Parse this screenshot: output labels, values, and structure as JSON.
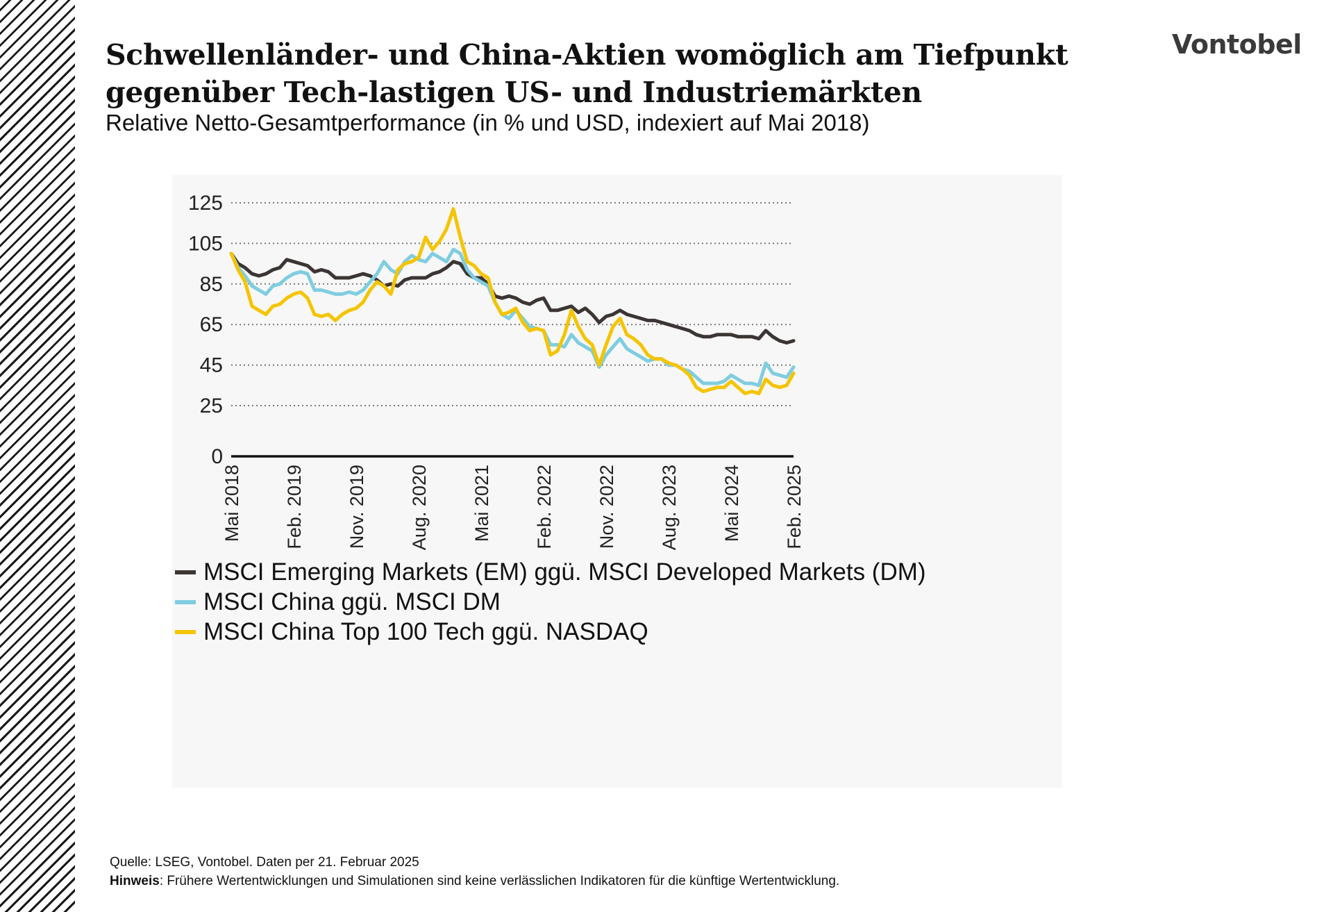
{
  "header": {
    "title_line1": "Schwellenländer- und China-Aktien womöglich am Tiefpunkt",
    "title_line2": "gegenüber Tech-lastigen US- und Industriemärkten",
    "subtitle": "Relative Netto-Gesamtperformance (in % und USD, indexiert auf Mai 2018)",
    "logo": "Vontobel"
  },
  "footer": {
    "source": "Quelle: LSEG, Vontobel. Daten per 21. Februar 2025",
    "note_label": "Hinweis",
    "note_text": ": Frühere Wertentwicklungen und Simulationen sind keine verlässlichen Indikatoren für die künftige Wertentwicklung."
  },
  "chart_data": {
    "type": "line",
    "x_tick_labels": [
      "Mai 2018",
      "Feb. 2019",
      "Nov. 2019",
      "Aug. 2020",
      "Mai 2021",
      "Feb. 2022",
      "Nov. 2022",
      "Aug. 2023",
      "Mai 2024",
      "Feb. 2025"
    ],
    "y_ticks": [
      0,
      25,
      45,
      65,
      85,
      105,
      125
    ],
    "ylim": [
      0,
      125
    ],
    "xlim": [
      "2018-05",
      "2025-02"
    ],
    "grid": "horizontal dotted",
    "legend_position": "bottom-left",
    "series": [
      {
        "name": "MSCI Emerging Markets (EM) ggü. MSCI Developed Markets (DM)",
        "color": "#3b3534",
        "points": [
          [
            "2018-05",
            100
          ],
          [
            "2018-06",
            95
          ],
          [
            "2018-07",
            93
          ],
          [
            "2018-08",
            90
          ],
          [
            "2018-09",
            89
          ],
          [
            "2018-10",
            90
          ],
          [
            "2018-11",
            92
          ],
          [
            "2018-12",
            93
          ],
          [
            "2019-01",
            97
          ],
          [
            "2019-02",
            96
          ],
          [
            "2019-03",
            95
          ],
          [
            "2019-04",
            94
          ],
          [
            "2019-05",
            91
          ],
          [
            "2019-06",
            92
          ],
          [
            "2019-07",
            91
          ],
          [
            "2019-08",
            88
          ],
          [
            "2019-09",
            88
          ],
          [
            "2019-10",
            88
          ],
          [
            "2019-11",
            89
          ],
          [
            "2019-12",
            90
          ],
          [
            "2020-01",
            89
          ],
          [
            "2020-02",
            87
          ],
          [
            "2020-03",
            84
          ],
          [
            "2020-04",
            85
          ],
          [
            "2020-05",
            84
          ],
          [
            "2020-06",
            87
          ],
          [
            "2020-07",
            88
          ],
          [
            "2020-08",
            88
          ],
          [
            "2020-09",
            88
          ],
          [
            "2020-10",
            90
          ],
          [
            "2020-11",
            91
          ],
          [
            "2020-12",
            93
          ],
          [
            "2021-01",
            96
          ],
          [
            "2021-02",
            95
          ],
          [
            "2021-03",
            90
          ],
          [
            "2021-04",
            88
          ],
          [
            "2021-05",
            88
          ],
          [
            "2021-06",
            85
          ],
          [
            "2021-07",
            79
          ],
          [
            "2021-08",
            78
          ],
          [
            "2021-09",
            79
          ],
          [
            "2021-10",
            78
          ],
          [
            "2021-11",
            76
          ],
          [
            "2021-12",
            75
          ],
          [
            "2022-01",
            77
          ],
          [
            "2022-02",
            78
          ],
          [
            "2022-03",
            72
          ],
          [
            "2022-04",
            72
          ],
          [
            "2022-05",
            73
          ],
          [
            "2022-06",
            74
          ],
          [
            "2022-07",
            71
          ],
          [
            "2022-08",
            73
          ],
          [
            "2022-09",
            70
          ],
          [
            "2022-10",
            66
          ],
          [
            "2022-11",
            69
          ],
          [
            "2022-12",
            70
          ],
          [
            "2023-01",
            72
          ],
          [
            "2023-02",
            70
          ],
          [
            "2023-03",
            69
          ],
          [
            "2023-04",
            68
          ],
          [
            "2023-05",
            67
          ],
          [
            "2023-06",
            67
          ],
          [
            "2023-07",
            66
          ],
          [
            "2023-08",
            65
          ],
          [
            "2023-09",
            64
          ],
          [
            "2023-10",
            63
          ],
          [
            "2023-11",
            62
          ],
          [
            "2023-12",
            60
          ],
          [
            "2024-01",
            59
          ],
          [
            "2024-02",
            59
          ],
          [
            "2024-03",
            60
          ],
          [
            "2024-04",
            60
          ],
          [
            "2024-05",
            60
          ],
          [
            "2024-06",
            59
          ],
          [
            "2024-07",
            59
          ],
          [
            "2024-08",
            59
          ],
          [
            "2024-09",
            58
          ],
          [
            "2024-10",
            62
          ],
          [
            "2024-11",
            59
          ],
          [
            "2024-12",
            57
          ],
          [
            "2025-01",
            56
          ],
          [
            "2025-02",
            57
          ]
        ]
      },
      {
        "name": "MSCI China ggü. MSCI DM",
        "color": "#7fcde0",
        "points": [
          [
            "2018-05",
            100
          ],
          [
            "2018-06",
            93
          ],
          [
            "2018-07",
            89
          ],
          [
            "2018-08",
            84
          ],
          [
            "2018-09",
            82
          ],
          [
            "2018-10",
            80
          ],
          [
            "2018-11",
            84
          ],
          [
            "2018-12",
            85
          ],
          [
            "2019-01",
            88
          ],
          [
            "2019-02",
            90
          ],
          [
            "2019-03",
            91
          ],
          [
            "2019-04",
            90
          ],
          [
            "2019-05",
            82
          ],
          [
            "2019-06",
            82
          ],
          [
            "2019-07",
            81
          ],
          [
            "2019-08",
            80
          ],
          [
            "2019-09",
            80
          ],
          [
            "2019-10",
            81
          ],
          [
            "2019-11",
            80
          ],
          [
            "2019-12",
            82
          ],
          [
            "2020-01",
            86
          ],
          [
            "2020-02",
            90
          ],
          [
            "2020-03",
            96
          ],
          [
            "2020-04",
            92
          ],
          [
            "2020-05",
            90
          ],
          [
            "2020-06",
            96
          ],
          [
            "2020-07",
            99
          ],
          [
            "2020-08",
            97
          ],
          [
            "2020-09",
            96
          ],
          [
            "2020-10",
            100
          ],
          [
            "2020-11",
            98
          ],
          [
            "2020-12",
            96
          ],
          [
            "2021-01",
            102
          ],
          [
            "2021-02",
            100
          ],
          [
            "2021-03",
            92
          ],
          [
            "2021-04",
            88
          ],
          [
            "2021-05",
            86
          ],
          [
            "2021-06",
            84
          ],
          [
            "2021-07",
            76
          ],
          [
            "2021-08",
            70
          ],
          [
            "2021-09",
            68
          ],
          [
            "2021-10",
            72
          ],
          [
            "2021-11",
            68
          ],
          [
            "2021-12",
            64
          ],
          [
            "2022-01",
            63
          ],
          [
            "2022-02",
            62
          ],
          [
            "2022-03",
            55
          ],
          [
            "2022-04",
            55
          ],
          [
            "2022-05",
            54
          ],
          [
            "2022-06",
            60
          ],
          [
            "2022-07",
            56
          ],
          [
            "2022-08",
            54
          ],
          [
            "2022-09",
            52
          ],
          [
            "2022-10",
            44
          ],
          [
            "2022-11",
            50
          ],
          [
            "2022-12",
            54
          ],
          [
            "2023-01",
            58
          ],
          [
            "2023-02",
            53
          ],
          [
            "2023-03",
            51
          ],
          [
            "2023-04",
            49
          ],
          [
            "2023-05",
            47
          ],
          [
            "2023-06",
            48
          ],
          [
            "2023-07",
            48
          ],
          [
            "2023-08",
            45
          ],
          [
            "2023-09",
            45
          ],
          [
            "2023-10",
            43
          ],
          [
            "2023-11",
            42
          ],
          [
            "2023-12",
            39
          ],
          [
            "2024-01",
            36
          ],
          [
            "2024-02",
            36
          ],
          [
            "2024-03",
            36
          ],
          [
            "2024-04",
            37
          ],
          [
            "2024-05",
            40
          ],
          [
            "2024-06",
            38
          ],
          [
            "2024-07",
            36
          ],
          [
            "2024-08",
            36
          ],
          [
            "2024-09",
            35
          ],
          [
            "2024-10",
            46
          ],
          [
            "2024-11",
            41
          ],
          [
            "2024-12",
            40
          ],
          [
            "2025-01",
            39
          ],
          [
            "2025-02",
            44
          ]
        ]
      },
      {
        "name": "MSCI China Top 100 Tech ggü. NASDAQ",
        "color": "#f5c400",
        "points": [
          [
            "2018-05",
            100
          ],
          [
            "2018-06",
            92
          ],
          [
            "2018-07",
            86
          ],
          [
            "2018-08",
            74
          ],
          [
            "2018-09",
            72
          ],
          [
            "2018-10",
            70
          ],
          [
            "2018-11",
            74
          ],
          [
            "2018-12",
            75
          ],
          [
            "2019-01",
            78
          ],
          [
            "2019-02",
            80
          ],
          [
            "2019-03",
            81
          ],
          [
            "2019-04",
            78
          ],
          [
            "2019-05",
            70
          ],
          [
            "2019-06",
            69
          ],
          [
            "2019-07",
            70
          ],
          [
            "2019-08",
            67
          ],
          [
            "2019-09",
            70
          ],
          [
            "2019-10",
            72
          ],
          [
            "2019-11",
            73
          ],
          [
            "2019-12",
            76
          ],
          [
            "2020-01",
            82
          ],
          [
            "2020-02",
            86
          ],
          [
            "2020-03",
            84
          ],
          [
            "2020-04",
            80
          ],
          [
            "2020-05",
            92
          ],
          [
            "2020-06",
            95
          ],
          [
            "2020-07",
            96
          ],
          [
            "2020-08",
            98
          ],
          [
            "2020-09",
            108
          ],
          [
            "2020-10",
            102
          ],
          [
            "2020-11",
            106
          ],
          [
            "2020-12",
            112
          ],
          [
            "2021-01",
            122
          ],
          [
            "2021-02",
            108
          ],
          [
            "2021-03",
            96
          ],
          [
            "2021-04",
            94
          ],
          [
            "2021-05",
            90
          ],
          [
            "2021-06",
            88
          ],
          [
            "2021-07",
            76
          ],
          [
            "2021-08",
            70
          ],
          [
            "2021-09",
            71
          ],
          [
            "2021-10",
            73
          ],
          [
            "2021-11",
            66
          ],
          [
            "2021-12",
            62
          ],
          [
            "2022-01",
            63
          ],
          [
            "2022-02",
            62
          ],
          [
            "2022-03",
            50
          ],
          [
            "2022-04",
            52
          ],
          [
            "2022-05",
            60
          ],
          [
            "2022-06",
            72
          ],
          [
            "2022-07",
            64
          ],
          [
            "2022-08",
            58
          ],
          [
            "2022-09",
            55
          ],
          [
            "2022-10",
            45
          ],
          [
            "2022-11",
            55
          ],
          [
            "2022-12",
            64
          ],
          [
            "2023-01",
            68
          ],
          [
            "2023-02",
            60
          ],
          [
            "2023-03",
            58
          ],
          [
            "2023-04",
            55
          ],
          [
            "2023-05",
            50
          ],
          [
            "2023-06",
            48
          ],
          [
            "2023-07",
            48
          ],
          [
            "2023-08",
            46
          ],
          [
            "2023-09",
            45
          ],
          [
            "2023-10",
            43
          ],
          [
            "2023-11",
            40
          ],
          [
            "2023-12",
            34
          ],
          [
            "2024-01",
            32
          ],
          [
            "2024-02",
            33
          ],
          [
            "2024-03",
            34
          ],
          [
            "2024-04",
            34
          ],
          [
            "2024-05",
            37
          ],
          [
            "2024-06",
            34
          ],
          [
            "2024-07",
            31
          ],
          [
            "2024-08",
            32
          ],
          [
            "2024-09",
            31
          ],
          [
            "2024-10",
            38
          ],
          [
            "2024-11",
            35
          ],
          [
            "2024-12",
            34
          ],
          [
            "2025-01",
            35
          ],
          [
            "2025-02",
            41
          ]
        ]
      }
    ]
  }
}
